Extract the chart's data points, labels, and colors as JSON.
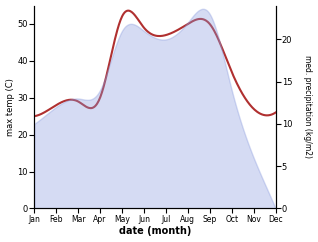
{
  "months": [
    "Jan",
    "Feb",
    "Mar",
    "Apr",
    "May",
    "Jun",
    "Jul",
    "Aug",
    "Sep",
    "Oct",
    "Nov",
    "Dec"
  ],
  "temp_max": [
    25,
    28,
    29,
    30,
    52,
    49,
    47,
    50,
    50,
    37,
    27,
    26
  ],
  "precip": [
    10,
    12,
    13,
    14,
    21,
    21,
    20,
    22,
    23,
    14,
    6,
    0
  ],
  "temp_color": "#b03030",
  "precip_color": "#8899dd",
  "precip_fill_alpha": 0.35,
  "left_ylim": [
    0,
    55
  ],
  "right_ylim": [
    0,
    24
  ],
  "left_yticks": [
    0,
    10,
    20,
    30,
    40,
    50
  ],
  "right_yticks": [
    0,
    5,
    10,
    15,
    20
  ],
  "xlabel": "date (month)",
  "ylabel_left": "max temp (C)",
  "ylabel_right": "med. precipitation (kg/m2)",
  "bg_color": "#ffffff",
  "fig_width": 3.18,
  "fig_height": 2.42,
  "dpi": 100
}
